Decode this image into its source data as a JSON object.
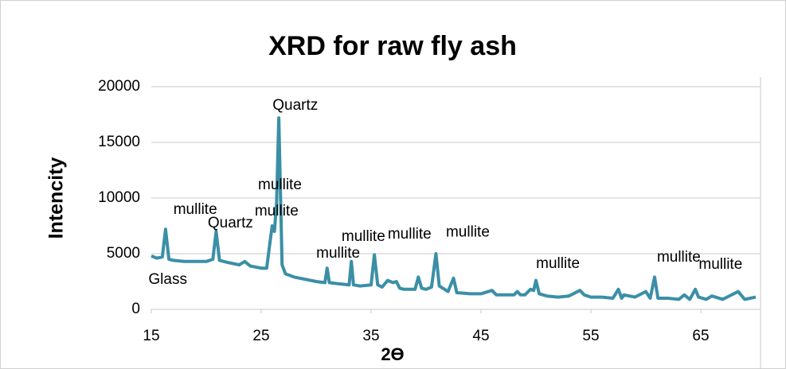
{
  "chart_data": {
    "type": "line",
    "title": "XRD for raw fly ash",
    "x_label": "2ϴ",
    "y_label": "Intencity",
    "xlim": [
      15,
      70
    ],
    "xticks": [
      15,
      25,
      35,
      45,
      55,
      65
    ],
    "ylim": [
      0,
      20000
    ],
    "yticks": [
      0,
      5000,
      10000,
      15000,
      20000
    ],
    "grid": true,
    "series": [
      {
        "name": "XRD",
        "color": "#3a8fa6",
        "x": [
          15,
          15.5,
          16,
          16.3,
          16.6,
          17,
          18,
          19,
          20,
          20.6,
          20.9,
          21.2,
          22,
          23,
          23.5,
          24,
          25,
          25.5,
          25.8,
          26,
          26.2,
          26.4,
          26.6,
          26.9,
          27.2,
          28,
          29,
          30,
          30.8,
          31,
          31.2,
          32,
          33,
          33.2,
          33.4,
          34,
          35,
          35.3,
          35.6,
          36,
          36.5,
          37,
          37.3,
          37.6,
          38,
          39,
          39.3,
          39.6,
          40,
          40.5,
          40.9,
          41.2,
          42,
          42.5,
          42.8,
          44,
          45,
          46,
          46.4,
          48,
          48.3,
          48.6,
          49,
          49.5,
          49.8,
          50,
          50.3,
          51,
          52,
          53,
          54,
          54.4,
          55,
          56,
          57,
          57.5,
          57.8,
          58,
          59,
          60,
          60.4,
          60.8,
          61.1,
          62,
          63,
          63.5,
          64,
          64.5,
          64.8,
          65.5,
          66,
          67,
          68,
          68.4,
          69,
          69.5,
          70
        ],
        "values": [
          4800,
          4600,
          4700,
          7200,
          4500,
          4400,
          4300,
          4300,
          4300,
          4500,
          7000,
          4400,
          4200,
          4000,
          4300,
          3900,
          3700,
          3700,
          6000,
          7500,
          7000,
          9500,
          17200,
          4000,
          3200,
          2900,
          2700,
          2500,
          2400,
          3700,
          2400,
          2300,
          2200,
          4300,
          2200,
          2100,
          2200,
          4900,
          2200,
          2000,
          2600,
          2400,
          2500,
          1900,
          1800,
          1800,
          2900,
          1900,
          1800,
          2000,
          5000,
          2100,
          1600,
          2800,
          1500,
          1400,
          1400,
          1700,
          1300,
          1300,
          1600,
          1300,
          1300,
          1800,
          1700,
          2600,
          1400,
          1200,
          1100,
          1200,
          1700,
          1300,
          1100,
          1100,
          1000,
          1800,
          1000,
          1300,
          1100,
          1600,
          1000,
          2900,
          1000,
          1000,
          900,
          1300,
          900,
          1800,
          1100,
          900,
          1200,
          900,
          1400,
          1600,
          900,
          1000,
          1100
        ]
      }
    ],
    "annotations": [
      {
        "text": "Glass",
        "x": 16.5,
        "y": 2640
      },
      {
        "text": "mullite",
        "x": 19,
        "y": 8930
      },
      {
        "text": "Quartz",
        "x": 22.2,
        "y": 7700
      },
      {
        "text": "Quartz",
        "x": 28.1,
        "y": 18300
      },
      {
        "text": "mullite",
        "x": 26.7,
        "y": 11140
      },
      {
        "text": "mullite",
        "x": 26.4,
        "y": 8790
      },
      {
        "text": "mullite",
        "x": 32,
        "y": 5000
      },
      {
        "text": "mullite",
        "x": 34.3,
        "y": 6500
      },
      {
        "text": "mullite",
        "x": 38.5,
        "y": 6700
      },
      {
        "text": "mullite",
        "x": 43.8,
        "y": 6900
      },
      {
        "text": "mullite",
        "x": 52,
        "y": 4070
      },
      {
        "text": "mullite",
        "x": 63,
        "y": 4640
      },
      {
        "text": "mullite",
        "x": 66.8,
        "y": 4000
      }
    ]
  }
}
